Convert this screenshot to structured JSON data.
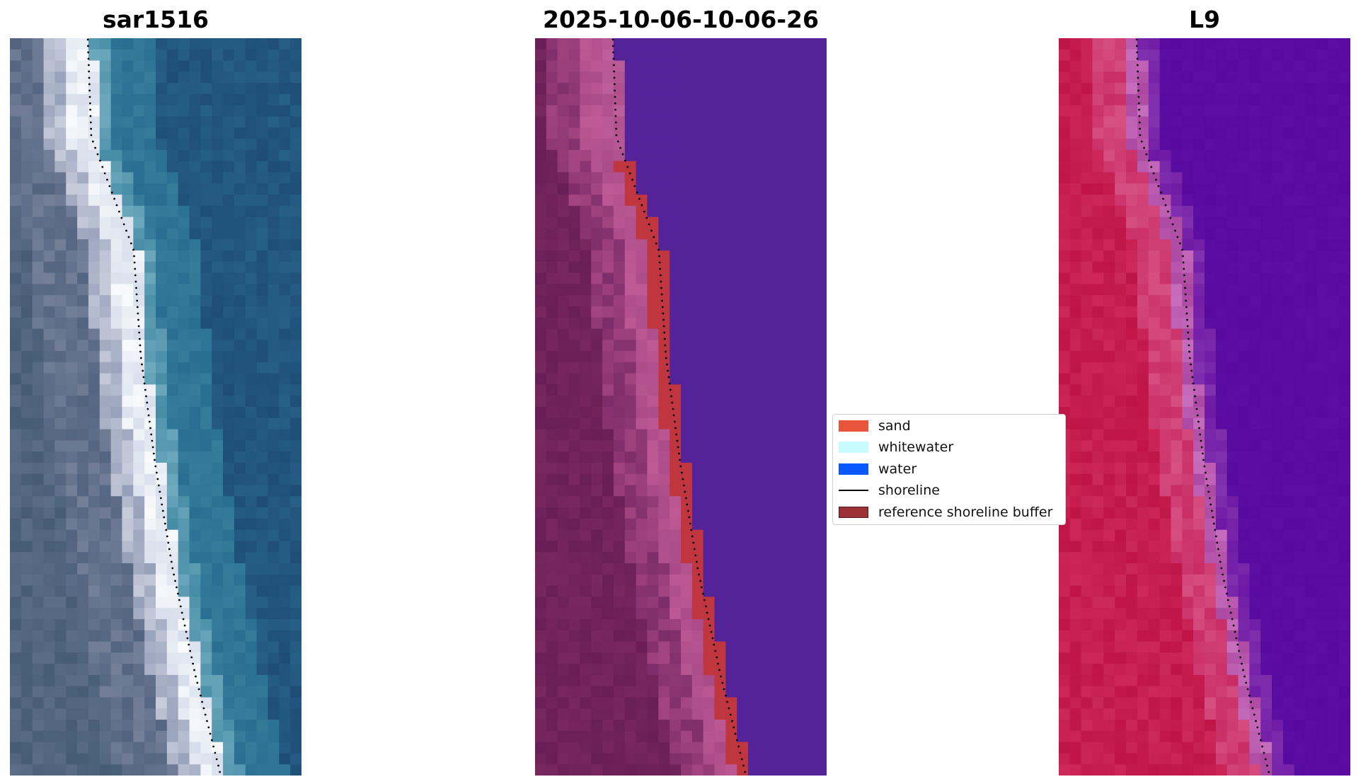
{
  "panels": [
    {
      "id": "rgb",
      "title": "sar1516"
    },
    {
      "id": "classified",
      "title": "2025-10-06-10-06-26"
    },
    {
      "id": "index",
      "title": "L9"
    }
  ],
  "legend": {
    "items": [
      {
        "label": "sand",
        "kind": "patch",
        "color": "#e8553a"
      },
      {
        "label": "whitewater",
        "kind": "patch",
        "color": "#c8fcfc"
      },
      {
        "label": "water",
        "kind": "patch",
        "color": "#0857ff"
      },
      {
        "label": "shoreline",
        "kind": "line",
        "color": "#000000"
      },
      {
        "label": "reference shoreline buffer",
        "kind": "patch",
        "color": "#9b3035"
      }
    ]
  },
  "colors": {
    "water_deep": "#1f4a78",
    "land": "#4f6a86",
    "classified_water": "#54239a",
    "classified_land": "#6e1e56",
    "classified_sand": "#c0363f",
    "index_land": "#c2194a",
    "index_water": "#5b0aa0"
  }
}
